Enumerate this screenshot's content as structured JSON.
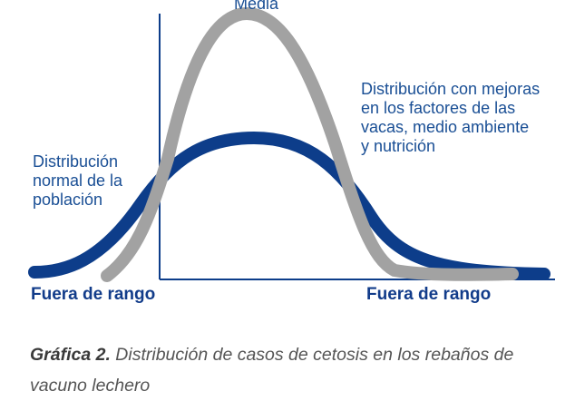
{
  "diagram": {
    "title_top": "Media",
    "label_normal": "Distribución\nnormal de la\npoblación",
    "label_improved": "Distribución con mejoras\nen los factores de las\nvacas, medio ambiente\ny nutrición",
    "label_out_left": "Fuera de rango",
    "label_out_right": "Fuera de rango",
    "curves": [
      {
        "name": "normal",
        "color": "#0d3d8a"
      },
      {
        "name": "improved",
        "color": "#a2a2a2"
      }
    ],
    "axis_color": "#0d3d8a"
  },
  "caption": {
    "bold": "Gráfica 2.",
    "text": " Distribución de casos de cetosis en los rebaños de vacuno lechero"
  }
}
